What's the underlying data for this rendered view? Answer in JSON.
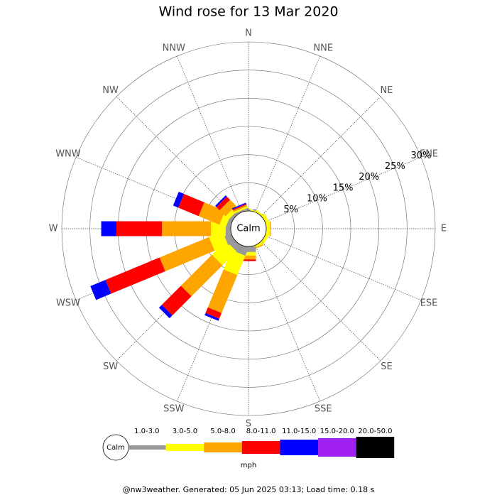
{
  "chart_data": {
    "type": "wind-rose",
    "title": "Wind rose for 13 Mar 2020",
    "categories": [
      "N",
      "NNE",
      "NE",
      "ENE",
      "E",
      "ESE",
      "SE",
      "SSE",
      "S",
      "SSW",
      "SW",
      "WSW",
      "W",
      "WNW",
      "NW",
      "NNW"
    ],
    "calm_label": "Calm",
    "rlim": [
      0,
      30
    ],
    "rticks": [
      {
        "value": 5,
        "label": "5%"
      },
      {
        "value": 10,
        "label": "10%"
      },
      {
        "value": 15,
        "label": "15%"
      },
      {
        "value": 20,
        "label": "20%"
      },
      {
        "value": 25,
        "label": "25%"
      },
      {
        "value": 30,
        "label": "30%"
      }
    ],
    "legend_unit": "mph",
    "series": [
      {
        "name": "1.0-3.0",
        "color": "#999999",
        "values": [
          0,
          0,
          0,
          0,
          0,
          0,
          0,
          0,
          1.0,
          1.5,
          1.2,
          1.3,
          0.9,
          0.7,
          0.5,
          0.3
        ]
      },
      {
        "name": "3.0-5.0",
        "color": "#ffff00",
        "values": [
          0.1,
          0.2,
          0.3,
          0.6,
          0.6,
          0.5,
          0.4,
          0.4,
          0.6,
          3.7,
          3.5,
          2.6,
          2.6,
          1.2,
          0.8,
          0.3
        ]
      },
      {
        "name": "5.0-8.0",
        "color": "#ffa500",
        "values": [
          0,
          0,
          0,
          0,
          0.2,
          0,
          0,
          0.2,
          0.7,
          7.3,
          7.8,
          9.5,
          8.7,
          4.0,
          1.5,
          0.3
        ]
      },
      {
        "name": "8.0-11.0",
        "color": "#ff0000",
        "values": [
          0,
          0,
          0,
          0,
          0,
          0,
          0,
          0,
          0.3,
          1.1,
          4.8,
          10.4,
          8.1,
          3.9,
          0.8,
          0.2
        ]
      },
      {
        "name": "11.0-15.0",
        "color": "#0000ff",
        "values": [
          0.1,
          0,
          0,
          0,
          0,
          0,
          0,
          0,
          0,
          0.4,
          0.7,
          2.9,
          2.7,
          1.0,
          0.3,
          0.2
        ]
      },
      {
        "name": "15.0-20.0",
        "color": "#a020f0",
        "values": [
          0,
          0,
          0,
          0,
          0,
          0,
          0,
          0,
          0,
          0,
          0,
          0,
          0,
          0,
          0,
          0
        ]
      },
      {
        "name": "20.0-50.0",
        "color": "#000000",
        "values": [
          0,
          0,
          0,
          0,
          0,
          0,
          0,
          0,
          0,
          0,
          0,
          0,
          0,
          0,
          0,
          0
        ]
      }
    ]
  },
  "footer": "@nw3weather. Generated: 05 Jun 2025 03:13; Load time: 0.18 s"
}
